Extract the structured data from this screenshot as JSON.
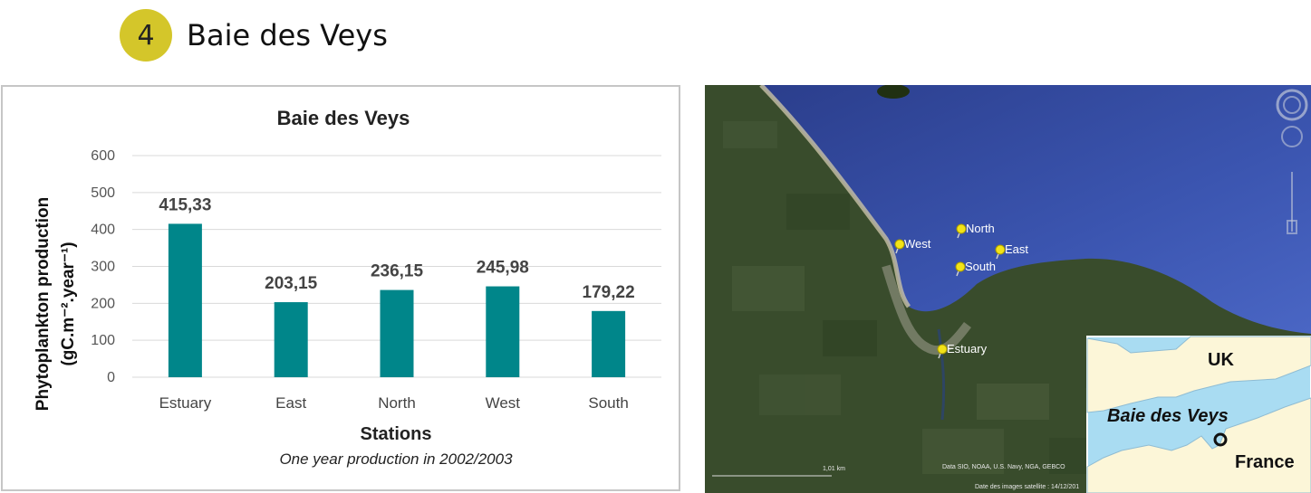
{
  "header": {
    "badge_number": "4",
    "title": "Baie des Veys"
  },
  "chart_data": {
    "type": "bar",
    "title": "Baie des Veys",
    "ylabel_main": "Phytoplankton production",
    "ylabel_unit": "(gC.m⁻².year⁻¹)",
    "xlabel": "Stations",
    "note": "One year production in 2002/2003",
    "categories": [
      "Estuary",
      "East",
      "North",
      "West",
      "South"
    ],
    "values": [
      415.33,
      203.15,
      236.15,
      245.98,
      179.22
    ],
    "data_labels": [
      "415,33",
      "203,15",
      "236,15",
      "245,98",
      "179,22"
    ],
    "ylim": [
      0,
      600
    ],
    "yticks": [
      0,
      100,
      200,
      300,
      400,
      500,
      600
    ],
    "bar_color": "#00868a",
    "grid": true
  },
  "map": {
    "stations": [
      "West",
      "North",
      "South",
      "East",
      "Estuary"
    ],
    "credit": "Data SIO, NOAA, U.S. Navy, NGA, GEBCO",
    "image_date": "Date des images satellite : 14/12/201",
    "scale_label": "1,01 km",
    "inset": {
      "uk": "UK",
      "bay": "Baie des Veys",
      "france": "France"
    }
  }
}
